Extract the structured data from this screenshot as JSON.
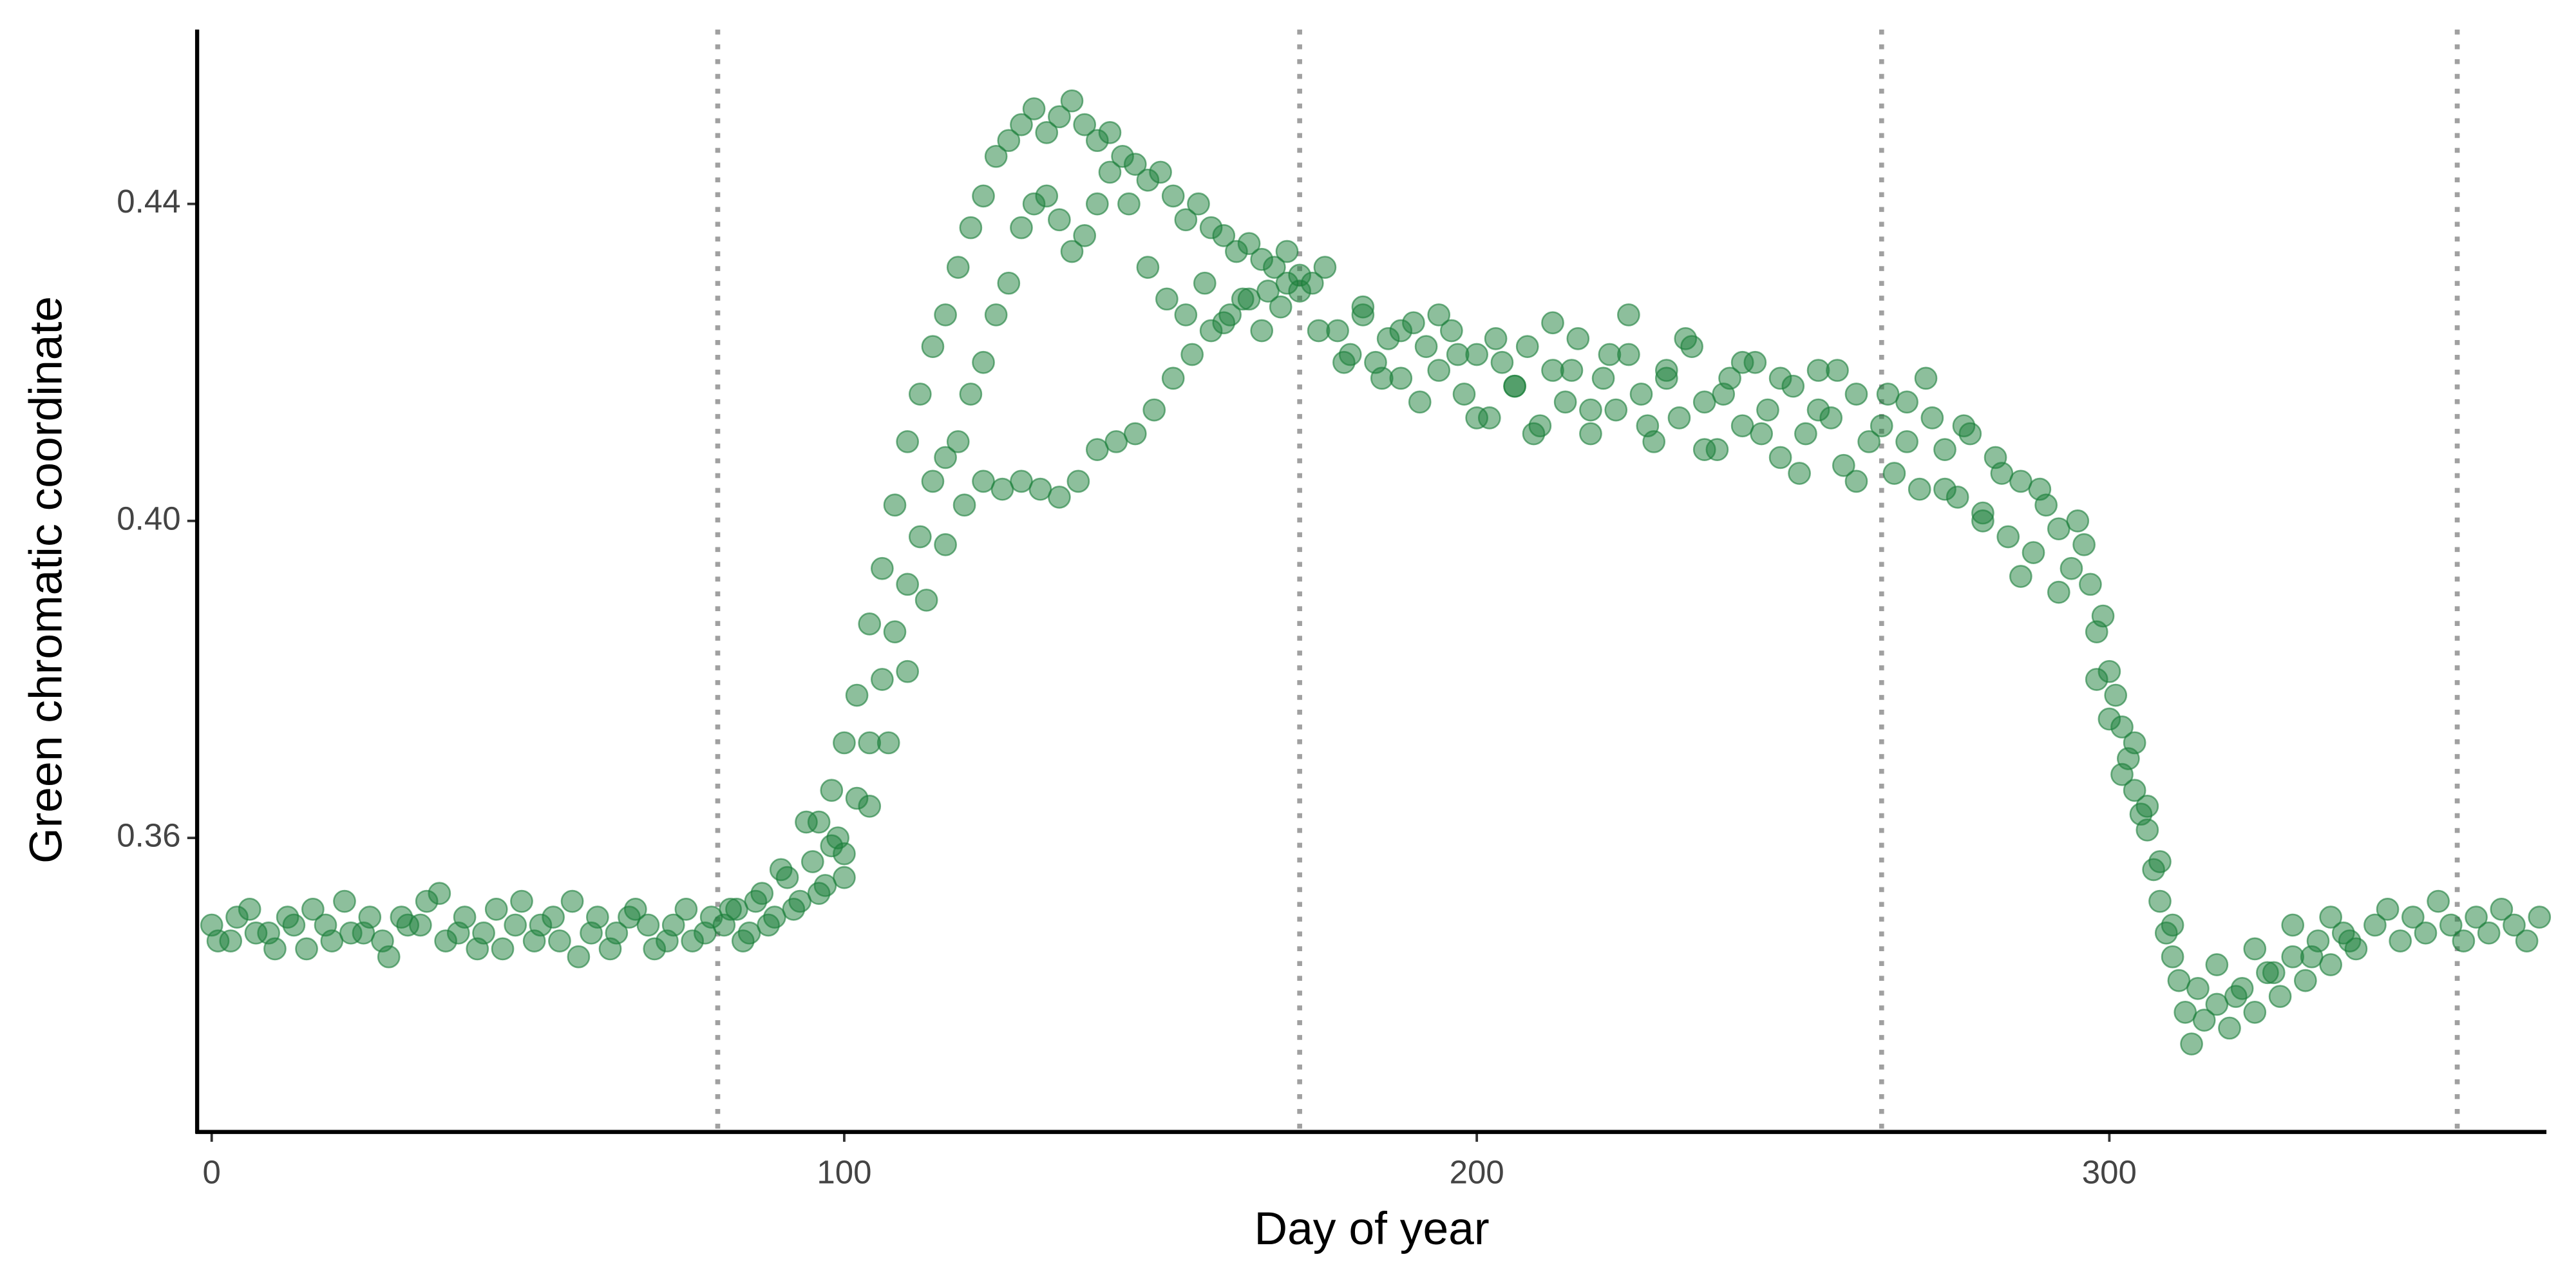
{
  "chart_data": {
    "type": "scatter",
    "x_label": "Day of year",
    "y_label": "Green chromatic coordinate",
    "xlim": [
      -2.3,
      369.1
    ],
    "ylim": [
      0.3229,
      0.462
    ],
    "xticks": [
      0,
      100,
      200,
      300
    ],
    "yticks": [
      0.36,
      {
        "value": 0.4,
        "label": "0.40"
      },
      0.44
    ],
    "vlines": [
      80,
      172,
      264,
      355
    ],
    "grid": false,
    "series": [
      {
        "color": "#1b7f3a",
        "x": [
          0,
          3,
          6,
          9,
          12,
          15,
          18,
          21,
          24,
          27,
          30,
          33,
          36,
          39,
          42,
          45,
          48,
          51,
          54,
          57,
          60,
          63,
          66,
          69,
          72,
          75,
          78,
          1,
          4,
          7,
          10,
          13,
          16,
          19,
          22,
          25,
          28,
          31,
          34,
          37,
          40,
          43,
          46,
          49,
          52,
          55,
          58,
          61,
          64,
          67,
          70,
          73,
          76,
          79,
          81,
          83,
          85,
          87,
          89,
          91,
          93,
          95,
          97,
          99,
          82,
          84,
          86,
          88,
          90,
          92,
          94,
          96,
          98,
          100,
          96,
          98,
          100,
          102,
          104,
          106,
          108,
          110,
          112,
          114,
          116,
          118,
          120,
          122,
          124,
          126,
          128,
          130,
          132,
          134,
          136,
          100,
          102,
          104,
          106,
          108,
          110,
          112,
          114,
          116,
          118,
          120,
          122,
          124,
          126,
          128,
          130,
          132,
          134,
          136,
          138,
          140,
          104,
          107,
          110,
          113,
          116,
          119,
          122,
          125,
          128,
          131,
          134,
          137,
          140,
          143,
          146,
          149,
          152,
          155,
          158,
          161,
          164,
          167,
          170,
          138,
          140,
          142,
          144,
          146,
          148,
          150,
          152,
          154,
          156,
          158,
          160,
          162,
          164,
          166,
          168,
          170,
          172,
          174,
          176,
          142,
          145,
          148,
          151,
          154,
          157,
          160,
          163,
          166,
          169,
          172,
          175,
          178,
          180,
          182,
          184,
          186,
          188,
          190,
          192,
          194,
          196,
          198,
          200,
          202,
          204,
          206,
          208,
          210,
          212,
          214,
          216,
          218,
          220,
          222,
          224,
          226,
          228,
          230,
          232,
          234,
          236,
          238,
          240,
          242,
          244,
          246,
          248,
          250,
          252,
          254,
          256,
          258,
          260,
          262,
          179,
          182,
          185,
          188,
          191,
          194,
          197,
          200,
          203,
          206,
          209,
          212,
          215,
          218,
          221,
          224,
          227,
          230,
          233,
          236,
          239,
          242,
          245,
          248,
          251,
          254,
          257,
          260,
          264,
          266,
          268,
          270,
          272,
          274,
          276,
          278,
          280,
          282,
          284,
          286,
          288,
          290,
          292,
          294,
          296,
          265,
          268,
          271,
          274,
          277,
          280,
          283,
          286,
          289,
          292,
          295,
          297,
          298,
          299,
          300,
          301,
          302,
          303,
          304,
          305,
          306,
          307,
          308,
          309,
          310,
          311,
          312,
          298,
          300,
          302,
          304,
          306,
          308,
          310,
          313,
          315,
          317,
          319,
          321,
          323,
          325,
          327,
          329,
          331,
          333,
          335,
          337,
          339,
          314,
          317,
          320,
          323,
          326,
          329,
          332,
          335,
          338,
          342,
          344,
          346,
          348,
          350,
          352,
          354,
          356,
          358,
          360,
          362,
          364,
          366,
          368
        ],
        "values": [
          0.349,
          0.347,
          0.351,
          0.348,
          0.35,
          0.346,
          0.349,
          0.352,
          0.348,
          0.347,
          0.35,
          0.349,
          0.353,
          0.348,
          0.346,
          0.351,
          0.349,
          0.347,
          0.35,
          0.352,
          0.348,
          0.346,
          0.35,
          0.349,
          0.347,
          0.351,
          0.348,
          0.347,
          0.35,
          0.348,
          0.346,
          0.349,
          0.351,
          0.347,
          0.348,
          0.35,
          0.345,
          0.349,
          0.352,
          0.347,
          0.35,
          0.348,
          0.346,
          0.352,
          0.349,
          0.347,
          0.345,
          0.35,
          0.348,
          0.351,
          0.346,
          0.349,
          0.347,
          0.35,
          0.349,
          0.351,
          0.348,
          0.353,
          0.35,
          0.355,
          0.352,
          0.357,
          0.354,
          0.36,
          0.351,
          0.347,
          0.352,
          0.349,
          0.356,
          0.351,
          0.362,
          0.353,
          0.359,
          0.355,
          0.362,
          0.366,
          0.372,
          0.378,
          0.387,
          0.394,
          0.402,
          0.41,
          0.416,
          0.422,
          0.426,
          0.432,
          0.437,
          0.441,
          0.446,
          0.448,
          0.45,
          0.452,
          0.449,
          0.451,
          0.453,
          0.358,
          0.365,
          0.372,
          0.38,
          0.386,
          0.392,
          0.398,
          0.405,
          0.408,
          0.41,
          0.416,
          0.42,
          0.426,
          0.43,
          0.437,
          0.44,
          0.441,
          0.438,
          0.434,
          0.436,
          0.44,
          0.364,
          0.372,
          0.381,
          0.39,
          0.397,
          0.402,
          0.405,
          0.404,
          0.405,
          0.404,
          0.403,
          0.405,
          0.409,
          0.41,
          0.411,
          0.414,
          0.418,
          0.421,
          0.424,
          0.426,
          0.428,
          0.429,
          0.43,
          0.45,
          0.448,
          0.449,
          0.446,
          0.445,
          0.443,
          0.444,
          0.441,
          0.438,
          0.44,
          0.437,
          0.436,
          0.434,
          0.435,
          0.433,
          0.432,
          0.434,
          0.431,
          0.43,
          0.432,
          0.444,
          0.44,
          0.432,
          0.428,
          0.426,
          0.43,
          0.425,
          0.428,
          0.424,
          0.427,
          0.429,
          0.424,
          0.424,
          0.421,
          0.426,
          0.42,
          0.423,
          0.418,
          0.425,
          0.422,
          0.419,
          0.424,
          0.416,
          0.421,
          0.413,
          0.42,
          0.417,
          0.422,
          0.412,
          0.419,
          0.415,
          0.423,
          0.411,
          0.418,
          0.414,
          0.421,
          0.416,
          0.41,
          0.419,
          0.413,
          0.422,
          0.415,
          0.409,
          0.418,
          0.412,
          0.42,
          0.414,
          0.408,
          0.417,
          0.411,
          0.419,
          0.413,
          0.407,
          0.416,
          0.41,
          0.42,
          0.427,
          0.418,
          0.424,
          0.415,
          0.426,
          0.421,
          0.413,
          0.423,
          0.417,
          0.411,
          0.425,
          0.419,
          0.414,
          0.421,
          0.426,
          0.412,
          0.418,
          0.423,
          0.409,
          0.416,
          0.42,
          0.411,
          0.418,
          0.406,
          0.414,
          0.419,
          0.405,
          0.412,
          0.406,
          0.415,
          0.404,
          0.413,
          0.409,
          0.403,
          0.411,
          0.401,
          0.408,
          0.398,
          0.405,
          0.396,
          0.402,
          0.399,
          0.394,
          0.397,
          0.416,
          0.41,
          0.418,
          0.404,
          0.412,
          0.4,
          0.406,
          0.393,
          0.404,
          0.391,
          0.4,
          0.392,
          0.386,
          0.388,
          0.381,
          0.378,
          0.374,
          0.37,
          0.366,
          0.363,
          0.361,
          0.356,
          0.352,
          0.348,
          0.345,
          0.342,
          0.338,
          0.38,
          0.375,
          0.368,
          0.372,
          0.364,
          0.357,
          0.349,
          0.334,
          0.337,
          0.339,
          0.336,
          0.341,
          0.338,
          0.343,
          0.34,
          0.345,
          0.342,
          0.347,
          0.344,
          0.348,
          0.346,
          0.341,
          0.344,
          0.34,
          0.346,
          0.343,
          0.349,
          0.345,
          0.35,
          0.347,
          0.349,
          0.351,
          0.347,
          0.35,
          0.348,
          0.352,
          0.349,
          0.347,
          0.35,
          0.348,
          0.351,
          0.349,
          0.347,
          0.35
        ]
      }
    ]
  }
}
